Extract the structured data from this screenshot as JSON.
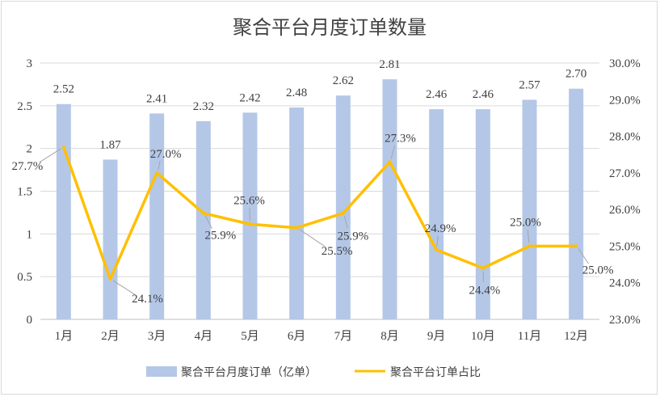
{
  "chart_data": {
    "type": "bar",
    "title": "聚合平台月度订单数量",
    "categories": [
      "1月",
      "2月",
      "3月",
      "4月",
      "5月",
      "6月",
      "7月",
      "8月",
      "9月",
      "10月",
      "11月",
      "12月"
    ],
    "series": [
      {
        "name": "聚合平台月度订单（亿单）",
        "type": "bar",
        "axis": "left",
        "color": "#b4c7e7",
        "values": [
          2.52,
          1.87,
          2.41,
          2.32,
          2.42,
          2.48,
          2.62,
          2.81,
          2.46,
          2.46,
          2.57,
          2.7
        ],
        "labels": [
          "2.52",
          "1.87",
          "2.41",
          "2.32",
          "2.42",
          "2.48",
          "2.62",
          "2.81",
          "2.46",
          "2.46",
          "2.57",
          "2.70"
        ]
      },
      {
        "name": "聚合平台订单占比",
        "type": "line",
        "axis": "right",
        "color": "#ffc000",
        "values": [
          27.7,
          24.1,
          27.0,
          25.9,
          25.6,
          25.5,
          25.9,
          27.3,
          24.9,
          24.4,
          25.0,
          25.0
        ],
        "labels": [
          "27.7%",
          "24.1%",
          "27.0%",
          "25.9%",
          "25.6%",
          "25.5%",
          "25.9%",
          "27.3%",
          "24.9%",
          "24.4%",
          "25.0%",
          "25.0%"
        ]
      }
    ],
    "y_left": {
      "ylim": [
        0,
        3
      ],
      "ticks": [
        0,
        0.5,
        1,
        1.5,
        2,
        2.5,
        3
      ],
      "tick_labels": [
        "0",
        "0.5",
        "1",
        "1.5",
        "2",
        "2.5",
        "3"
      ]
    },
    "y_right": {
      "ylim": [
        23.0,
        30.0
      ],
      "ticks": [
        23,
        24,
        25,
        26,
        27,
        28,
        29,
        30
      ],
      "tick_labels": [
        "23.0%",
        "24.0%",
        "25.0%",
        "26.0%",
        "27.0%",
        "28.0%",
        "29.0%",
        "30.0%"
      ]
    },
    "grid": true,
    "legend_position": "bottom"
  }
}
